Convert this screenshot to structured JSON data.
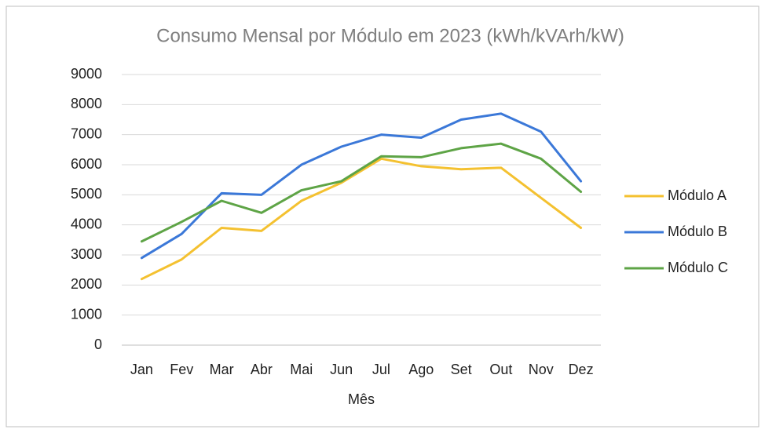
{
  "chart_data": {
    "type": "line",
    "title": "Consumo Mensal por Módulo em 2023 (kWh/kVArh/kW)",
    "x_label": "Mês",
    "categories": [
      "Jan",
      "Fev",
      "Mar",
      "Abr",
      "Mai",
      "Jun",
      "Jul",
      "Ago",
      "Set",
      "Out",
      "Nov",
      "Dez"
    ],
    "series": [
      {
        "name": "Módulo A",
        "color": "#f4c130",
        "values": [
          2200,
          2850,
          3900,
          3800,
          4800,
          5400,
          6200,
          5950,
          5850,
          5900,
          4900,
          3900
        ]
      },
      {
        "name": "Módulo B",
        "color": "#3b78d8",
        "values": [
          2900,
          3700,
          5050,
          5000,
          6000,
          6600,
          7000,
          6900,
          7500,
          7700,
          7100,
          5450
        ]
      },
      {
        "name": "Módulo C",
        "color": "#5ea446",
        "values": [
          3450,
          4100,
          4800,
          4400,
          5150,
          5450,
          6280,
          6250,
          6550,
          6700,
          6200,
          5100
        ]
      }
    ],
    "ylim": [
      0,
      9000
    ],
    "yticks": [
      0,
      1000,
      2000,
      3000,
      4000,
      5000,
      6000,
      7000,
      8000,
      9000
    ],
    "grid": true,
    "legend": "right"
  }
}
